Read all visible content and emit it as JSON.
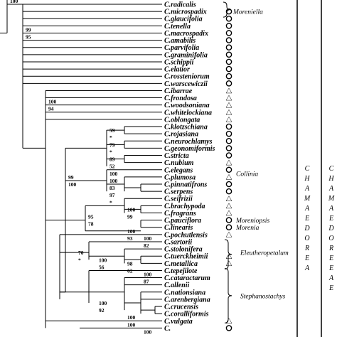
{
  "taxa": [
    {
      "name": "C.radicalis",
      "marker": ""
    },
    {
      "name": "C.microspadix",
      "marker": "circle"
    },
    {
      "name": "C.glaucifolia",
      "marker": "circle"
    },
    {
      "name": "C.tenella",
      "marker": "circle"
    },
    {
      "name": "C.macrospadix",
      "marker": "circle"
    },
    {
      "name": "C.amabilis",
      "marker": "circle"
    },
    {
      "name": "C.parvifolia",
      "marker": "circle"
    },
    {
      "name": "C.graminifolia",
      "marker": "circle"
    },
    {
      "name": "C.schippii",
      "marker": "circle"
    },
    {
      "name": "C.elatior",
      "marker": "circle"
    },
    {
      "name": "C.rossteniorum",
      "marker": "circle"
    },
    {
      "name": "C.warscewiczii",
      "marker": "circle"
    },
    {
      "name": "C.ibarrae",
      "marker": "triangle"
    },
    {
      "name": "C.frondosa",
      "marker": "triangle"
    },
    {
      "name": "C.woodsoniana",
      "marker": "triangle"
    },
    {
      "name": "C.whitelockiana",
      "marker": "triangle"
    },
    {
      "name": "C.oblongata",
      "marker": "triangle"
    },
    {
      "name": "C.klotzschiana",
      "marker": "circle"
    },
    {
      "name": "C.rojasiana",
      "marker": "circle"
    },
    {
      "name": "C.neurochlamys",
      "marker": "circle"
    },
    {
      "name": "C.geonomiformis",
      "marker": "circle"
    },
    {
      "name": "C.stricta",
      "marker": "circle"
    },
    {
      "name": "C.nubium",
      "marker": "triangle"
    },
    {
      "name": "C.elegans",
      "marker": "circle"
    },
    {
      "name": "C.plumosa",
      "marker": "triangle"
    },
    {
      "name": "C.pinnatifrons",
      "marker": "circle"
    },
    {
      "name": "C.serpens",
      "marker": "circle"
    },
    {
      "name": "C.seifrizii",
      "marker": "triangle"
    },
    {
      "name": "C.brachypoda",
      "marker": "triangle"
    },
    {
      "name": "C.fragrans",
      "marker": "triangle"
    },
    {
      "name": "C.pauciflora",
      "marker": "circle"
    },
    {
      "name": "C.linearis",
      "marker": "circle"
    },
    {
      "name": "C.pochutlensis",
      "marker": "triangle"
    },
    {
      "name": "C.sartorii",
      "marker": ""
    },
    {
      "name": "C.stolonifera",
      "marker": ""
    },
    {
      "name": "C.tuerckheimii",
      "marker": "triangle"
    },
    {
      "name": "C.metallica",
      "marker": "triangle"
    },
    {
      "name": "C.tepejilote",
      "marker": ""
    },
    {
      "name": "C.cataractarum",
      "marker": ""
    },
    {
      "name": "C.allenii",
      "marker": ""
    },
    {
      "name": "C.nationsiana",
      "marker": ""
    },
    {
      "name": "C.arenbergiana",
      "marker": ""
    },
    {
      "name": "C.crucensis",
      "marker": ""
    },
    {
      "name": "C.coralliformis",
      "marker": ""
    },
    {
      "name": "C.vulgata",
      "marker": "triangle"
    },
    {
      "name": "C.",
      "marker": "circle"
    }
  ],
  "groups": [
    {
      "name": "Moreniella",
      "row": 1
    },
    {
      "name": "Collinia",
      "row": 23.5
    },
    {
      "name": "Moreniopsis",
      "row": 30
    },
    {
      "name": "Morenia",
      "row": 31
    },
    {
      "name": "Eleutheropetalum",
      "row": 34.5
    },
    {
      "name": "Stephanostachys",
      "row": 40.5
    }
  ],
  "supports": [
    {
      "text": "100",
      "row": -0.5,
      "col": 0
    },
    {
      "text": "99",
      "row": 3.5,
      "col": 1
    },
    {
      "text": "95",
      "row": 4.5,
      "col": 1
    },
    {
      "text": "100",
      "row": 13.5,
      "col": 2
    },
    {
      "text": "94",
      "row": 14.5,
      "col": 2
    },
    {
      "text": "59",
      "row": 17.5,
      "col": 5
    },
    {
      "text": "*",
      "row": 18.5,
      "col": 5
    },
    {
      "text": "79",
      "row": 19.5,
      "col": 5
    },
    {
      "text": "*",
      "row": 20.5,
      "col": 5
    },
    {
      "text": "89",
      "row": 21.5,
      "col": 5
    },
    {
      "text": "52",
      "row": 22.5,
      "col": 5
    },
    {
      "text": "100",
      "row": 23.5,
      "col": 5
    },
    {
      "text": "100",
      "row": 24.5,
      "col": 5
    },
    {
      "text": "83",
      "row": 25.5,
      "col": 5
    },
    {
      "text": "97",
      "row": 26.5,
      "col": 5
    },
    {
      "text": "*",
      "row": 27.5,
      "col": 5
    },
    {
      "text": "99",
      "row": 24,
      "col": 3
    },
    {
      "text": "100",
      "row": 25,
      "col": 3
    },
    {
      "text": "100",
      "row": 28.5,
      "col": 6
    },
    {
      "text": "99",
      "row": 29.5,
      "col": 6
    },
    {
      "text": "95",
      "row": 29.5,
      "col": 4
    },
    {
      "text": "78",
      "row": 30.5,
      "col": 4
    },
    {
      "text": "100",
      "row": 31.5,
      "col": 6
    },
    {
      "text": "93",
      "row": 32.5,
      "col": 6
    },
    {
      "text": "100",
      "row": 32.5,
      "col": 7
    },
    {
      "text": "82",
      "row": 33.5,
      "col": 7
    },
    {
      "text": "70",
      "row": 34.5,
      "col": 3.5
    },
    {
      "text": "*",
      "row": 35.5,
      "col": 3.5
    },
    {
      "text": "100",
      "row": 35.5,
      "col": 4.5
    },
    {
      "text": "56",
      "row": 36.5,
      "col": 4.5
    },
    {
      "text": "98",
      "row": 36,
      "col": 6
    },
    {
      "text": "62",
      "row": 37,
      "col": 6
    },
    {
      "text": "100",
      "row": 37.5,
      "col": 7
    },
    {
      "text": "87",
      "row": 38.5,
      "col": 7
    },
    {
      "text": "100",
      "row": 41.5,
      "col": 4.5
    },
    {
      "text": "92",
      "row": 42.5,
      "col": 4.5
    },
    {
      "text": "100",
      "row": 43.5,
      "col": 6
    },
    {
      "text": "100",
      "row": 44.5,
      "col": 6
    },
    {
      "text": "100",
      "row": 45.5,
      "col": 7
    },
    {
      "text": "100",
      "row": 46.5,
      "col": 7
    }
  ],
  "vertical_labels": [
    {
      "text": "CHAMAEDOREA",
      "col": "inner"
    },
    {
      "text": "CHAMAEDOREEAE",
      "col": "outer"
    }
  ]
}
